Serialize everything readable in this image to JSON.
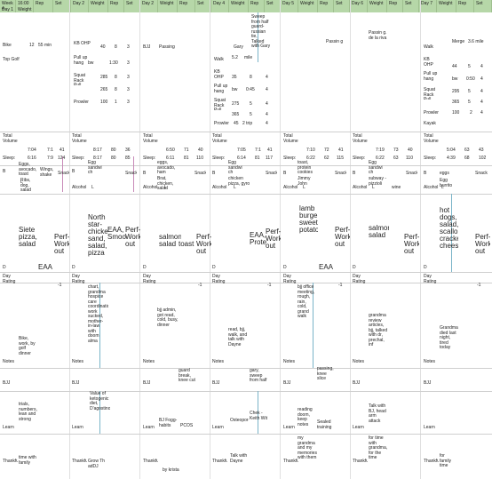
{
  "header": {
    "week_label": "Week 4",
    "days": [
      {
        "time1": "16:00",
        "a": "Day 1",
        "b": "Weight",
        "c": "Rep",
        "d": "Set"
      },
      {
        "time1": "16",
        "time2": "6:58",
        "a": "Day 2",
        "b": "Weight",
        "c": "Rep",
        "d": "Set"
      },
      {
        "time1": "16",
        "time2": "7:59",
        "a": "Day 4",
        "b": "Weight",
        "c": "Rep",
        "d": "Set"
      },
      {
        "time1": "16",
        "time2": "7:12",
        "a": "Day 5",
        "b": "Weight",
        "c": "Rep",
        "d": "Set"
      },
      {
        "time1": "16",
        "time2": "7:43",
        "a": "Day 6",
        "b": "Weight",
        "c": "Rep",
        "d": "Set"
      },
      {
        "time1": "16:00",
        "time2": "7:55",
        "a": "Day 7",
        "b": "Weight",
        "c": "Rep",
        "d": "Set"
      }
    ]
  },
  "workout": {
    "d1": {
      "bike": "Bike",
      "bike_val": "12",
      "bike_unit": "55 min",
      "top_golf": "Top Golf"
    },
    "d2": {
      "rows": [
        {
          "name": "KB OHP",
          "w": "40",
          "r": "8",
          "s": "3"
        },
        {
          "name": "Pull up hang",
          "w": "bw",
          "r": "1:30",
          "s": "3"
        },
        {
          "name": "Squat Rack Pull",
          "w": "285",
          "r": "8",
          "s": "3"
        },
        {
          "name": "",
          "w": "265",
          "r": "8",
          "s": "3"
        },
        {
          "name": "Prowler",
          "w": "100",
          "r": "1",
          "s": "3"
        }
      ],
      "bjj": "BJJ",
      "bjj_note": "Passing"
    },
    "d4": {
      "note": "Sweep from half guard-russian tie, Talked with Gary",
      "gary": "Gary",
      "rows": [
        {
          "name": "Walk",
          "w": "5.2",
          "r": "mile",
          "s": ""
        },
        {
          "name": "KB OHP",
          "w": "35",
          "r": "8",
          "s": "4"
        },
        {
          "name": "Pull up hang",
          "w": "bw",
          "r": "0:45",
          "s": "4"
        },
        {
          "name": "Squat Rack Pull",
          "w": "275",
          "r": "5",
          "s": "4"
        },
        {
          "name": "",
          "w": "365",
          "r": "5",
          "s": "4"
        },
        {
          "name": "Prowler",
          "w": "45",
          "r": "2 trip",
          "s": "4"
        }
      ]
    },
    "d5": {
      "passing": "Passin g"
    },
    "d6": {
      "passing": "Passin g. de la riva"
    },
    "d7": {
      "walk": "Walk",
      "walk_w": "Merge",
      "walk_r": "3.6 mile",
      "rows": [
        {
          "name": "KB OHP",
          "w": "44",
          "r": "5",
          "s": "4"
        },
        {
          "name": "Pull up hang",
          "w": "bw",
          "r": "0:50",
          "s": "4"
        },
        {
          "name": "Squat Rack Pull",
          "w": "295",
          "r": "5",
          "s": "4"
        },
        {
          "name": "",
          "w": "365",
          "r": "5",
          "s": "4"
        },
        {
          "name": "Prowler",
          "w": "100",
          "r": "2",
          "s": "4"
        },
        {
          "name": "Kayak",
          "w": "",
          "r": "",
          "s": ""
        }
      ]
    }
  },
  "totals": {
    "label": "Total Volume",
    "sleep_label": "Sleep:",
    "blocks": [
      {
        "a": "7:04",
        "b": "7:1",
        "c": "41",
        "d": "6:16",
        "e": "7:9",
        "f": "124"
      },
      {
        "a": "8:17",
        "b": "80",
        "c": "36",
        "d": "8:17",
        "e": "80",
        "f": "85"
      },
      {
        "a": "6:50",
        "b": "71",
        "c": "40",
        "d": "6:11",
        "e": "81",
        "f": "110"
      },
      {
        "a": "7:05",
        "b": "7:1",
        "c": "41",
        "d": "6:14",
        "e": "81",
        "f": "117"
      },
      {
        "a": "7:10",
        "b": "72",
        "c": "41",
        "d": "6:22",
        "e": "62",
        "f": "115"
      },
      {
        "a": "7:19",
        "b": "73",
        "c": "40",
        "d": "6:22",
        "e": "63",
        "f": "110"
      },
      {
        "a": "5:04",
        "b": "63",
        "c": "43",
        "d": "4:39",
        "e": "68",
        "f": "102"
      }
    ]
  },
  "meals": [
    {
      "b": "B",
      "text": "Eggs, avocado, toast",
      "snack": "Wings, shake",
      "snack_label": "Snack",
      "alcohol": "",
      "l": "L",
      "lunch": "Ribs, dog, salad"
    },
    {
      "b": "B",
      "text": "Egg sandwi ch",
      "snack": "",
      "snack_label": "Snack",
      "alcohol": "Alcohol",
      "l": "L",
      "lunch": ""
    },
    {
      "b": "B",
      "text": "eggs, avocado, ham",
      "snack": "",
      "snack_label": "Snack",
      "alcohol": "Alcohol",
      "l": "L",
      "lunch": "Brat, chicken, salad"
    },
    {
      "b": "B",
      "text": "Egg sandwi ch",
      "snack": "",
      "snack_label": "Snack",
      "alcohol": "Alcohol",
      "l": "L",
      "lunch": "chicken pizza, gyro"
    },
    {
      "b": "B",
      "text": "toast, protein cookies",
      "snack": "",
      "snack_label": "Snack",
      "alcohol": "Alcohol",
      "l": "L",
      "lunch": "Jimmy John"
    },
    {
      "b": "B",
      "text": "Egg sandwi ch",
      "snack": "",
      "snack_label": "Snack",
      "alcohol": "Alcohol",
      "l": "L",
      "lunch": "subway - pizzioli",
      "wine": "wine"
    },
    {
      "b": "B",
      "text": "eggs",
      "snack": "",
      "snack_label": "Snack",
      "alcohol": "Alcohol",
      "l": "L",
      "lunch": "Egg burrito"
    }
  ],
  "dinners": [
    {
      "d": "D",
      "text": "Siete pizza, salad",
      "extra": "EAA",
      "work": "Perf-Work out"
    },
    {
      "d": "D",
      "text": "North star-chicken sand, salad, pizza",
      "extra": "EAA, Smoothie",
      "work": "Perf-Work out"
    },
    {
      "d": "D",
      "text": "salmon, salad",
      "extra": "toast",
      "work": "Perf-Work out"
    },
    {
      "d": "D",
      "text": "",
      "extra": "EAA, Protein",
      "work": "Perf-Work out"
    },
    {
      "d": "D",
      "text": "lamb burger, sweet potato",
      "extra": "EAA",
      "work": "Perf-Work out"
    },
    {
      "d": "D",
      "text": "salmon, salad",
      "extra": "",
      "work": "Perf-Work out"
    },
    {
      "d": "D",
      "text": "hot dogs, salad, scallops, crackers, cheese",
      "extra": "",
      "work": "Perf-Work out"
    }
  ],
  "day_rating": {
    "label": "Day Rating",
    "values": [
      "-1",
      "",
      "-1",
      "-1",
      "-1",
      "",
      "-1"
    ]
  },
  "notes": [
    {
      "label": "Notes",
      "text": "Bike, work, by golf dinner"
    },
    {
      "label": "Notes",
      "text": "chart, grandma hospice care coordination, work sucked, mother-in-law with doom alma"
    },
    {
      "label": "Notes",
      "text": "bjj admin, got read, cold, busy, dinner"
    },
    {
      "label": "Notes",
      "text": "read, bjj, walk, and talk with Dayne"
    },
    {
      "label": "Notes",
      "text": "bjj office meeting, rough, rain, cold, grand walk"
    },
    {
      "label": "Notes",
      "text": "grandma review articles, bjj, talked with dr, prechal, inf"
    },
    {
      "label": "Notes",
      "text": "Grandma died last night, tired today"
    }
  ],
  "bjj_row": [
    {
      "label": "BJJ",
      "text": ""
    },
    {
      "label": "BJJ",
      "text": ""
    },
    {
      "label": "BJJ",
      "text": "guard break, knee cut"
    },
    {
      "label": "BJJ",
      "text": "gary, sweep from half"
    },
    {
      "label": "BJJ",
      "text": "passing, knee slice"
    },
    {
      "label": "BJJ",
      "text": ""
    },
    {
      "label": "BJJ",
      "text": ""
    }
  ],
  "learn": [
    {
      "label": "Learn",
      "text": "trials, numbers, lean and strong"
    },
    {
      "label": "Learn",
      "text": "Value of ketogenic diet, D'agostino"
    },
    {
      "label": "Learn",
      "text": "BJ Fogg-habits",
      "extra": "PCOS"
    },
    {
      "label": "Learn",
      "text": "Osteoporosis",
      "extra": "Chek - Keith Wit"
    },
    {
      "label": "Learn",
      "text": "reading doom, keep notes",
      "extra": "Sealed training"
    },
    {
      "label": "Learn",
      "text": "Talk with BJ, head arm attack"
    },
    {
      "label": "Learn",
      "text": ""
    }
  ],
  "thankful": [
    {
      "label": "Thankful",
      "text": "time with family"
    },
    {
      "label": "Thankful",
      "text": "Grow Th adDJ"
    },
    {
      "label": "Thankful",
      "text": "by krista"
    },
    {
      "label": "Thankful",
      "text": "Talk with Dayne"
    },
    {
      "label": "Thankful",
      "text": "my grandma and my memories with them"
    },
    {
      "label": "Thankful",
      "text": "for time with grandma, for the time"
    },
    {
      "label": "Thankful",
      "text": "for family time"
    }
  ]
}
